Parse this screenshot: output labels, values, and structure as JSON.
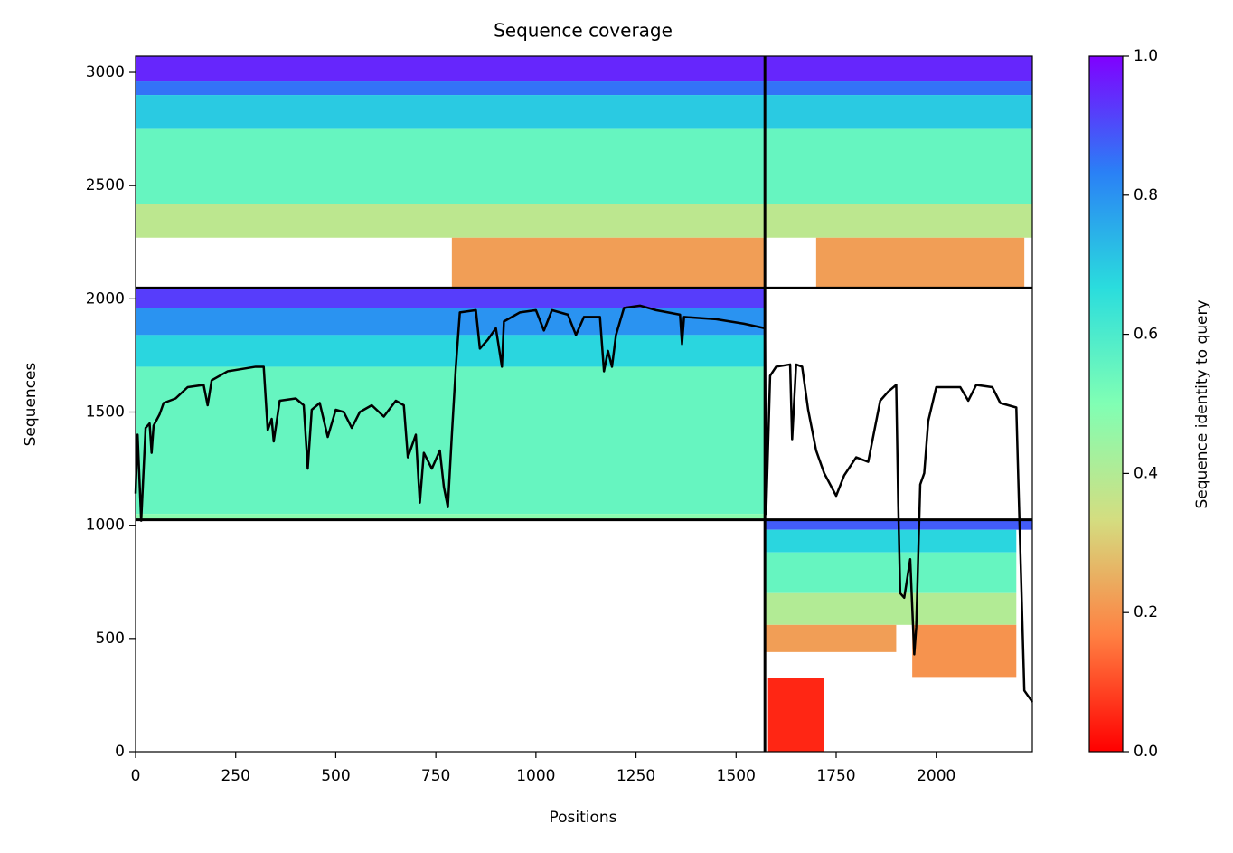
{
  "chart_data": {
    "type": "heatmap",
    "title": "Sequence coverage",
    "x_label": "Positions",
    "y_label": "Sequences",
    "colorbar_label": "Sequence identity to query",
    "xlim": [
      0,
      2240
    ],
    "ylim": [
      0,
      3072
    ],
    "xticks": [
      0,
      250,
      500,
      750,
      1000,
      1250,
      1500,
      1750,
      2000
    ],
    "yticks": [
      0,
      500,
      1000,
      1500,
      2000,
      2500,
      3000
    ],
    "clim": [
      0,
      1
    ],
    "cticks": [
      {
        "value": 0,
        "label": "0.0"
      },
      0.2,
      0.4,
      0.6,
      0.8,
      {
        "value": 1,
        "label": "1.0"
      }
    ],
    "colormap": [
      "#ff0000",
      "#ff8042",
      "#d4dd80",
      "#80ffb4",
      "#2adddd",
      "#2a80f6",
      "#8000ff"
    ],
    "cells": [
      {
        "x": [
          0,
          2240
        ],
        "y": [
          2960,
          3072
        ],
        "identity": 0.95
      },
      {
        "x": [
          0,
          2240
        ],
        "y": [
          2900,
          2960
        ],
        "identity": 0.85
      },
      {
        "x": [
          0,
          2240
        ],
        "y": [
          2750,
          2900
        ],
        "identity": 0.7
      },
      {
        "x": [
          0,
          2240
        ],
        "y": [
          2420,
          2750
        ],
        "identity": 0.55
      },
      {
        "x": [
          0,
          2240
        ],
        "y": [
          2270,
          2420
        ],
        "identity": 0.38
      },
      {
        "x": [
          790,
          1572
        ],
        "y": [
          2048,
          2270
        ],
        "identity": 0.22
      },
      {
        "x": [
          1700,
          2220
        ],
        "y": [
          2048,
          2270
        ],
        "identity": 0.22
      },
      {
        "x": [
          0,
          1572
        ],
        "y": [
          1960,
          2048
        ],
        "identity": 0.92
      },
      {
        "x": [
          0,
          1572
        ],
        "y": [
          1840,
          1960
        ],
        "identity": 0.8
      },
      {
        "x": [
          0,
          1572
        ],
        "y": [
          1700,
          1840
        ],
        "identity": 0.68
      },
      {
        "x": [
          0,
          1572
        ],
        "y": [
          1050,
          1700
        ],
        "identity": 0.55
      },
      {
        "x": [
          0,
          1572
        ],
        "y": [
          1024,
          1050
        ],
        "identity": 0.48
      },
      {
        "x": [
          1575,
          2240
        ],
        "y": [
          980,
          1024
        ],
        "identity": 0.88
      },
      {
        "x": [
          1575,
          2200
        ],
        "y": [
          880,
          980
        ],
        "identity": 0.68
      },
      {
        "x": [
          1575,
          2200
        ],
        "y": [
          700,
          880
        ],
        "identity": 0.55
      },
      {
        "x": [
          1575,
          2200
        ],
        "y": [
          560,
          700
        ],
        "identity": 0.4
      },
      {
        "x": [
          1575,
          1900
        ],
        "y": [
          440,
          560
        ],
        "identity": 0.22
      },
      {
        "x": [
          1940,
          2200
        ],
        "y": [
          330,
          560
        ],
        "identity": 0.2
      },
      {
        "x": [
          1580,
          1720
        ],
        "y": [
          0,
          325
        ],
        "identity": 0.05
      }
    ],
    "chain_breaks": {
      "x": [
        1572
      ],
      "y": [
        1024,
        2048
      ]
    },
    "coverage": {
      "color": "#000000",
      "x": [
        0,
        5,
        14,
        25,
        35,
        40,
        45,
        60,
        70,
        100,
        130,
        170,
        180,
        190,
        230,
        300,
        320,
        330,
        340,
        345,
        360,
        400,
        420,
        430,
        440,
        460,
        480,
        500,
        520,
        540,
        560,
        590,
        620,
        650,
        670,
        680,
        700,
        710,
        720,
        740,
        760,
        770,
        780,
        790,
        800,
        810,
        850,
        860,
        880,
        900,
        915,
        920,
        960,
        1000,
        1020,
        1040,
        1080,
        1100,
        1120,
        1160,
        1170,
        1180,
        1190,
        1200,
        1220,
        1260,
        1300,
        1360,
        1365,
        1370,
        1450,
        1520,
        1572,
        1575,
        1585,
        1600,
        1635,
        1640,
        1650,
        1665,
        1680,
        1700,
        1720,
        1750,
        1770,
        1800,
        1830,
        1860,
        1880,
        1900,
        1905,
        1910,
        1920,
        1935,
        1945,
        1950,
        1960,
        1970,
        1980,
        2000,
        2060,
        2080,
        2100,
        2140,
        2160,
        2200,
        2205,
        2220,
        2240
      ],
      "values": [
        1140,
        1400,
        1020,
        1430,
        1450,
        1320,
        1440,
        1490,
        1540,
        1560,
        1610,
        1620,
        1530,
        1640,
        1680,
        1700,
        1700,
        1420,
        1470,
        1370,
        1550,
        1560,
        1530,
        1250,
        1510,
        1540,
        1390,
        1510,
        1500,
        1430,
        1500,
        1530,
        1480,
        1550,
        1530,
        1300,
        1400,
        1100,
        1320,
        1250,
        1330,
        1170,
        1080,
        1400,
        1700,
        1940,
        1950,
        1780,
        1820,
        1870,
        1700,
        1900,
        1940,
        1950,
        1860,
        1950,
        1930,
        1840,
        1920,
        1920,
        1680,
        1770,
        1700,
        1840,
        1960,
        1970,
        1950,
        1930,
        1800,
        1920,
        1910,
        1890,
        1870,
        1050,
        1660,
        1700,
        1710,
        1380,
        1710,
        1700,
        1510,
        1330,
        1230,
        1130,
        1220,
        1300,
        1280,
        1550,
        1590,
        1620,
        1100,
        700,
        680,
        850,
        430,
        550,
        1180,
        1230,
        1460,
        1610,
        1610,
        1550,
        1620,
        1610,
        1540,
        1520,
        1200,
        270,
        220
      ]
    }
  }
}
